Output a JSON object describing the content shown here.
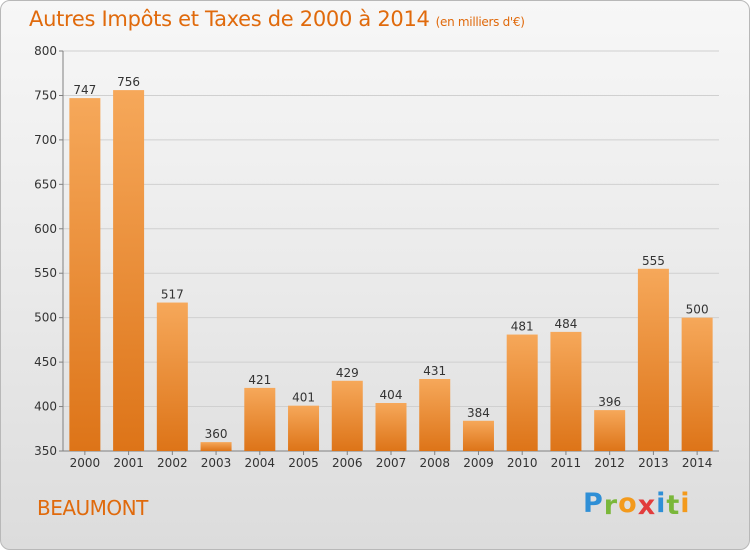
{
  "title": "Autres Impôts et Taxes de 2000 à 2014",
  "subtitle": "(en milliers d'€)",
  "commune": "BEAUMONT",
  "logo": {
    "letters": [
      "P",
      "r",
      "o",
      "x",
      "i",
      "t",
      "i"
    ],
    "colors": [
      "#2f8fd6",
      "#7ab73a",
      "#f39a1c",
      "#e23c3c",
      "#2f8fd6",
      "#7ab73a",
      "#f39a1c"
    ]
  },
  "colors": {
    "bar_top": "#f6a85a",
    "bar_bottom": "#dd7418",
    "accent": "#e06a0c",
    "grid": "#d0d0d0",
    "axis": "#808080"
  },
  "chart_data": {
    "type": "bar",
    "title": "Autres Impôts et Taxes de 2000 à 2014",
    "subtitle": "(en milliers d'€)",
    "xlabel": "",
    "ylabel": "",
    "ylim": [
      350,
      800
    ],
    "yticks": [
      350,
      400,
      450,
      500,
      550,
      600,
      650,
      700,
      750,
      800
    ],
    "grid": true,
    "categories": [
      "2000",
      "2001",
      "2002",
      "2003",
      "2004",
      "2005",
      "2006",
      "2007",
      "2008",
      "2009",
      "2010",
      "2011",
      "2012",
      "2013",
      "2014"
    ],
    "values": [
      747,
      756,
      517,
      360,
      421,
      401,
      429,
      404,
      431,
      384,
      481,
      484,
      396,
      555,
      500
    ]
  }
}
